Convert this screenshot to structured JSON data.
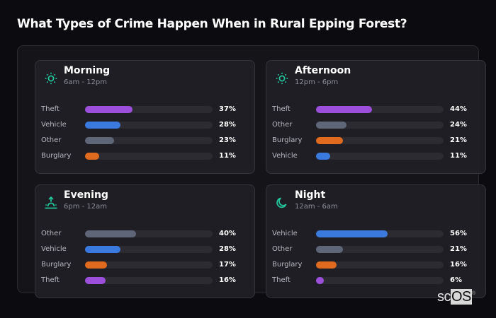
{
  "title": "What Types of Crime Happen When in Rural Epping Forest?",
  "colors": {
    "Theft": "#9b4fdb",
    "Vehicle": "#3a7ade",
    "Other": "#5e6677",
    "Burglary": "#e06a1e",
    "icon": "#22c39a"
  },
  "cards": [
    {
      "name": "Morning",
      "range": "6am - 12pm",
      "icon": "sun-icon",
      "rows": [
        {
          "label": "Theft",
          "pct": 37,
          "text": "37%"
        },
        {
          "label": "Vehicle",
          "pct": 28,
          "text": "28%"
        },
        {
          "label": "Other",
          "pct": 23,
          "text": "23%"
        },
        {
          "label": "Burglary",
          "pct": 11,
          "text": "11%"
        }
      ]
    },
    {
      "name": "Afternoon",
      "range": "12pm - 6pm",
      "icon": "sun-icon",
      "rows": [
        {
          "label": "Theft",
          "pct": 44,
          "text": "44%"
        },
        {
          "label": "Other",
          "pct": 24,
          "text": "24%"
        },
        {
          "label": "Burglary",
          "pct": 21,
          "text": "21%"
        },
        {
          "label": "Vehicle",
          "pct": 11,
          "text": "11%"
        }
      ]
    },
    {
      "name": "Evening",
      "range": "6pm - 12am",
      "icon": "sunset-icon",
      "rows": [
        {
          "label": "Other",
          "pct": 40,
          "text": "40%"
        },
        {
          "label": "Vehicle",
          "pct": 28,
          "text": "28%"
        },
        {
          "label": "Burglary",
          "pct": 17,
          "text": "17%"
        },
        {
          "label": "Theft",
          "pct": 16,
          "text": "16%"
        }
      ]
    },
    {
      "name": "Night",
      "range": "12am - 6am",
      "icon": "moon-icon",
      "rows": [
        {
          "label": "Vehicle",
          "pct": 56,
          "text": "56%"
        },
        {
          "label": "Other",
          "pct": 21,
          "text": "21%"
        },
        {
          "label": "Burglary",
          "pct": 16,
          "text": "16%"
        },
        {
          "label": "Theft",
          "pct": 6,
          "text": "6%"
        }
      ]
    }
  ],
  "logo": {
    "sc": "sc",
    "os": "OS",
    "mark": "®"
  },
  "chart_data": [
    {
      "type": "bar",
      "title": "Morning (6am - 12pm)",
      "categories": [
        "Theft",
        "Vehicle",
        "Other",
        "Burglary"
      ],
      "values": [
        37,
        28,
        23,
        11
      ],
      "unit": "%",
      "orientation": "horizontal"
    },
    {
      "type": "bar",
      "title": "Afternoon (12pm - 6pm)",
      "categories": [
        "Theft",
        "Other",
        "Burglary",
        "Vehicle"
      ],
      "values": [
        44,
        24,
        21,
        11
      ],
      "unit": "%",
      "orientation": "horizontal"
    },
    {
      "type": "bar",
      "title": "Evening (6pm - 12am)",
      "categories": [
        "Other",
        "Vehicle",
        "Burglary",
        "Theft"
      ],
      "values": [
        40,
        28,
        17,
        16
      ],
      "unit": "%",
      "orientation": "horizontal"
    },
    {
      "type": "bar",
      "title": "Night (12am - 6am)",
      "categories": [
        "Vehicle",
        "Other",
        "Burglary",
        "Theft"
      ],
      "values": [
        56,
        21,
        16,
        6
      ],
      "unit": "%",
      "orientation": "horizontal"
    }
  ]
}
